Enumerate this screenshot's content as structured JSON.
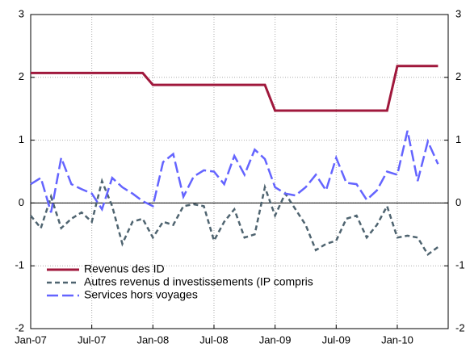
{
  "chart_data": {
    "type": "line",
    "categories": [
      "Jan-07",
      null,
      null,
      null,
      null,
      null,
      "Jul-07",
      null,
      null,
      null,
      null,
      null,
      "Jan-08",
      null,
      null,
      null,
      null,
      null,
      "Jul-08",
      null,
      null,
      null,
      null,
      null,
      "Jan-09",
      null,
      null,
      null,
      null,
      null,
      "Jul-09",
      null,
      null,
      null,
      null,
      null,
      "Jan-10",
      null,
      null,
      null,
      null,
      null
    ],
    "series": [
      {
        "name": "Revenus des ID",
        "color": "#a0183c",
        "linestyle": "solid",
        "values": [
          2.07,
          2.07,
          2.07,
          2.07,
          2.07,
          2.07,
          2.07,
          2.07,
          2.07,
          2.07,
          2.07,
          2.07,
          1.88,
          1.88,
          1.88,
          1.88,
          1.88,
          1.88,
          1.88,
          1.88,
          1.88,
          1.88,
          1.88,
          1.88,
          1.47,
          1.47,
          1.47,
          1.47,
          1.47,
          1.47,
          1.47,
          1.47,
          1.47,
          1.47,
          1.47,
          1.47,
          2.18,
          2.18,
          2.18,
          2.18,
          2.18,
          null
        ]
      },
      {
        "name": "Autres revenus d investissements (IP compris",
        "color": "#4f6470",
        "linestyle": "short",
        "values": [
          -0.2,
          -0.4,
          0.1,
          -0.4,
          -0.25,
          -0.15,
          -0.3,
          0.35,
          -0.05,
          -0.65,
          -0.3,
          -0.25,
          -0.55,
          -0.3,
          -0.35,
          -0.05,
          -0.02,
          -0.05,
          -0.6,
          -0.3,
          -0.1,
          -0.55,
          -0.5,
          0.25,
          -0.2,
          0.15,
          -0.1,
          -0.35,
          -0.75,
          -0.65,
          -0.6,
          -0.25,
          -0.2,
          -0.55,
          -0.35,
          -0.05,
          -0.55,
          -0.52,
          -0.55,
          -0.82,
          -0.7,
          null
        ]
      },
      {
        "name": "Services hors voyages",
        "color": "#6464ff",
        "linestyle": "long",
        "values": [
          0.3,
          0.4,
          -0.15,
          0.72,
          0.3,
          0.22,
          0.15,
          -0.1,
          0.4,
          0.25,
          0.15,
          0.03,
          -0.05,
          0.65,
          0.78,
          0.1,
          0.42,
          0.52,
          0.5,
          0.3,
          0.75,
          0.45,
          0.85,
          0.7,
          0.25,
          0.15,
          0.12,
          0.25,
          0.45,
          0.2,
          0.72,
          0.32,
          0.3,
          0.05,
          0.2,
          0.5,
          0.45,
          1.15,
          0.35,
          0.98,
          0.62,
          null
        ]
      }
    ],
    "ylim": [
      -2,
      3
    ],
    "yticks": [
      -2,
      -1,
      0,
      1,
      2,
      3
    ],
    "y2lim": [
      -2,
      3
    ],
    "y2ticks": [
      -2,
      -1,
      0,
      1,
      2,
      3
    ],
    "grid": true
  }
}
